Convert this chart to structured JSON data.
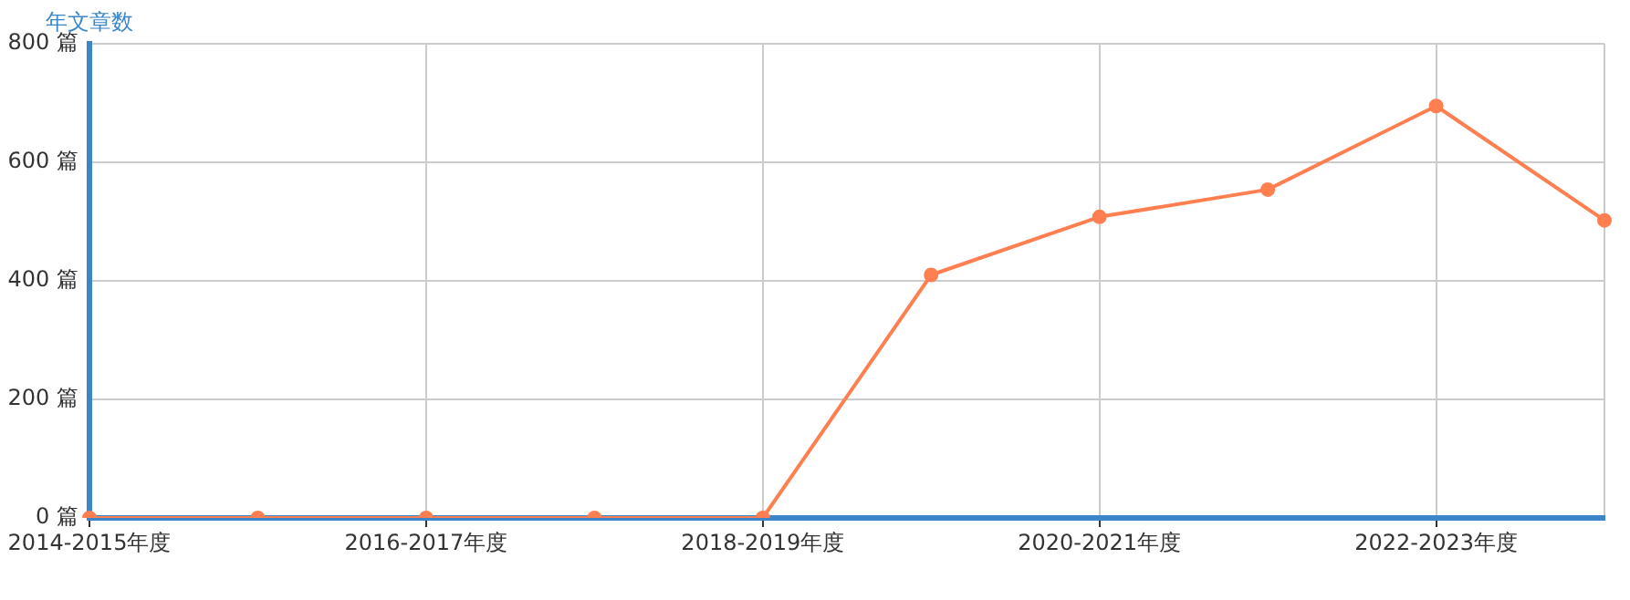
{
  "chart_data": {
    "type": "line",
    "ylabel": "年文章数",
    "categories": [
      "2014-2015年度",
      null,
      "2016-2017年度",
      null,
      "2018-2019年度",
      null,
      "2020-2021年度",
      null,
      "2022-2023年度",
      null
    ],
    "series": [
      {
        "color": "#ff7f50",
        "values": [
          0,
          0,
          0,
          0,
          0,
          410,
          508,
          554,
          695,
          502
        ]
      }
    ],
    "ylim": [
      0,
      800
    ],
    "yticks": [
      {
        "value": 0,
        "label": "0 篇"
      },
      {
        "value": 200,
        "label": "200 篇"
      },
      {
        "value": 400,
        "label": "400 篇"
      },
      {
        "value": 600,
        "label": "600 篇"
      },
      {
        "value": 800,
        "label": "800 篇"
      }
    ],
    "grid": true,
    "marker": "circle",
    "legend": false
  }
}
